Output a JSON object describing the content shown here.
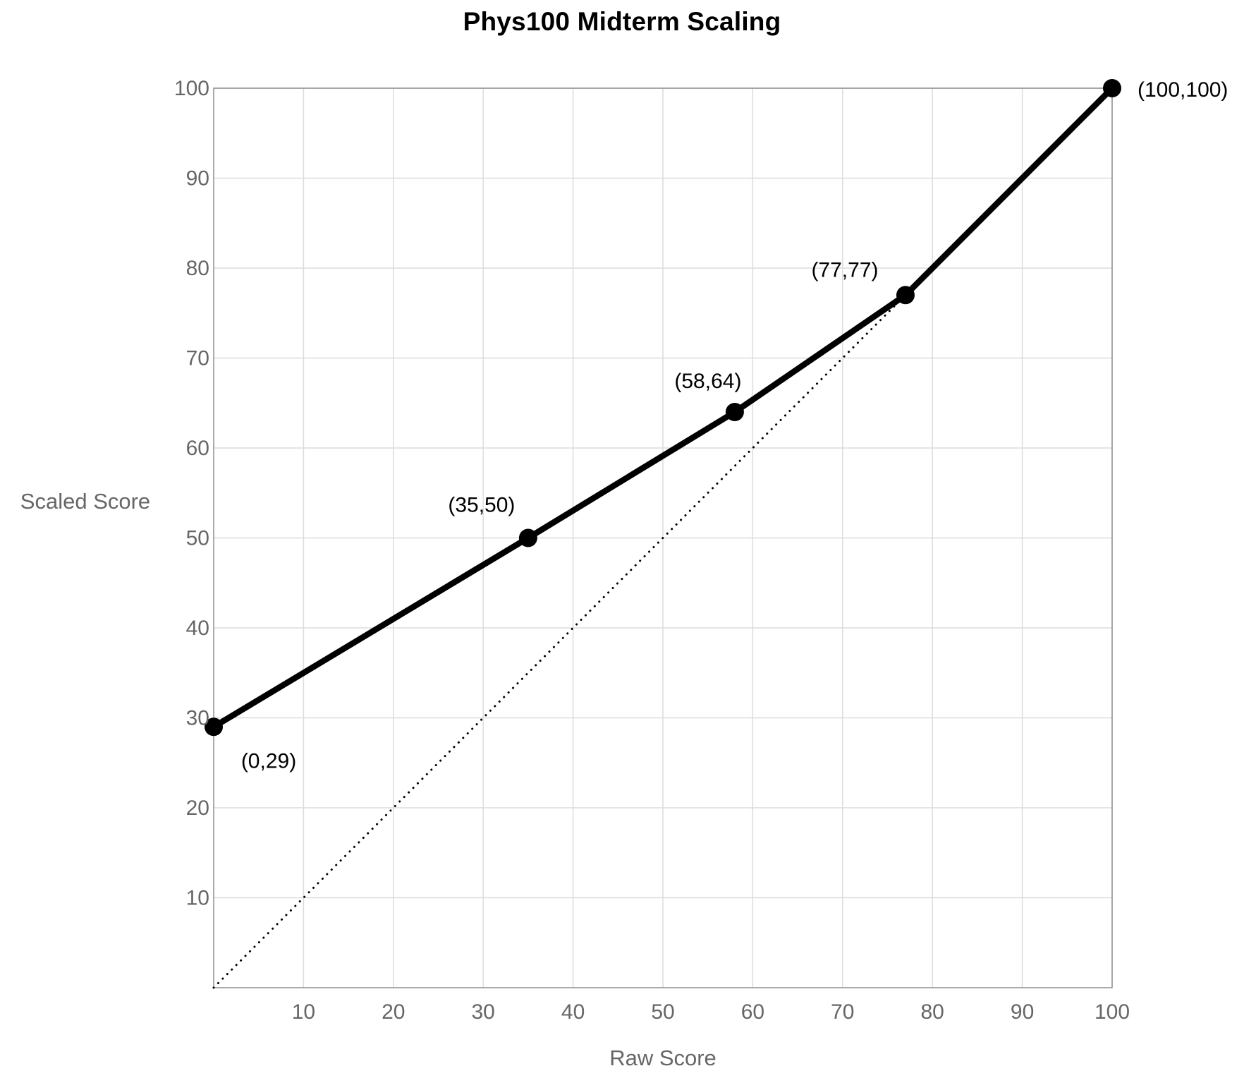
{
  "chart_data": {
    "type": "line",
    "title": "Phys100 Midterm Scaling",
    "xlabel": "Raw Score",
    "ylabel": "Scaled Score",
    "xlim": [
      0,
      100
    ],
    "ylim": [
      0,
      100
    ],
    "xticks": [
      10,
      20,
      30,
      40,
      50,
      60,
      70,
      80,
      90,
      100
    ],
    "yticks": [
      10,
      20,
      30,
      40,
      50,
      60,
      70,
      80,
      90,
      100
    ],
    "grid": true,
    "legend": false,
    "series": [
      {
        "name": "identity-reference-line",
        "style": "dotted",
        "color": "#000000",
        "points": [
          {
            "x": 0,
            "y": 0
          },
          {
            "x": 100,
            "y": 100
          }
        ]
      },
      {
        "name": "scaling-curve",
        "style": "solid",
        "color": "#000000",
        "points": [
          {
            "x": 0,
            "y": 29,
            "label": "(0,29)",
            "label_dx": 78,
            "label_dy": 58,
            "label_anchor": "middle"
          },
          {
            "x": 35,
            "y": 50,
            "label": "(35,50)",
            "label_dx": -66,
            "label_dy": -37,
            "label_anchor": "middle"
          },
          {
            "x": 58,
            "y": 64,
            "label": "(58,64)",
            "label_dx": -38,
            "label_dy": -34,
            "label_anchor": "middle"
          },
          {
            "x": 77,
            "y": 77,
            "label": "(77,77)",
            "label_dx": -86,
            "label_dy": -26,
            "label_anchor": "middle"
          },
          {
            "x": 100,
            "y": 100,
            "label": "(100,100)",
            "label_dx": 36,
            "label_dy": 12,
            "label_anchor": "start"
          }
        ]
      }
    ],
    "colors": {
      "background": "#ffffff",
      "grid": "#dcdcdc",
      "axis_border": "#8f8f8f",
      "tick_labels": "#666666",
      "axis_titles": "#666666",
      "series": "#000000",
      "title": "#000000"
    }
  }
}
